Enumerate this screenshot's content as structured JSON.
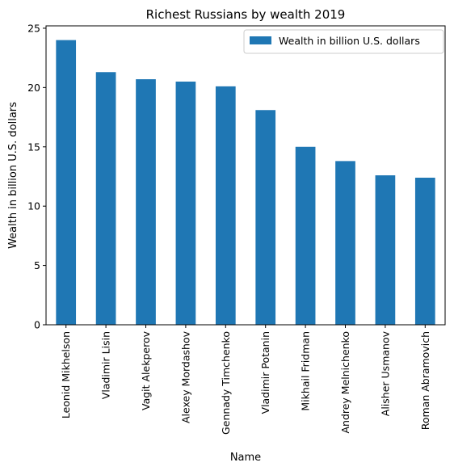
{
  "chart_data": {
    "type": "bar",
    "title": "Richest Russians by wealth 2019",
    "xlabel": "Name",
    "ylabel": "Wealth in billion U.S. dollars",
    "categories": [
      "Leonid Mikhelson",
      "Vladimir Lisin",
      "Vagit Alekperov",
      "Alexey Mordashov",
      "Gennady Timchenko",
      "Vladimir Potanin",
      "Mikhail Fridman",
      "Andrey Melnichenko",
      "Alisher Usmanov",
      "Roman Abramovich"
    ],
    "series": [
      {
        "name": "Wealth in billion U.S. dollars",
        "values": [
          24.0,
          21.3,
          20.7,
          20.5,
          20.1,
          18.1,
          15.0,
          13.8,
          12.6,
          12.4
        ],
        "color": "#1f77b4"
      }
    ],
    "yticks": [
      0,
      5,
      10,
      15,
      20,
      25
    ],
    "ylim": [
      0,
      25.2
    ],
    "grid": false,
    "legend_position": "top-right"
  }
}
